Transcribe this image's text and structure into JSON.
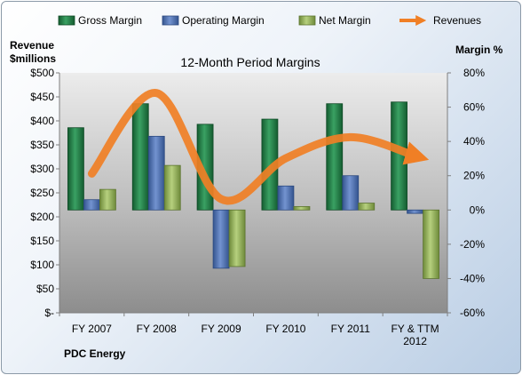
{
  "chart_data": {
    "type": "bar",
    "title": "12-Month Period Margins",
    "company": "PDC Energy",
    "left_axis_label": [
      "Revenue",
      "$millions"
    ],
    "right_axis_label": "Margin %",
    "categories": [
      [
        "FY 2007"
      ],
      [
        "FY 2008"
      ],
      [
        "FY 2009"
      ],
      [
        "FY 2010"
      ],
      [
        "FY 2011"
      ],
      [
        "FY & TTM",
        "2012"
      ]
    ],
    "left_ticks": [
      "$-",
      "$50",
      "$100",
      "$150",
      "$200",
      "$250",
      "$300",
      "$350",
      "$400",
      "$450",
      "$500"
    ],
    "right_ticks": [
      "-60%",
      "-40%",
      "-20%",
      "0%",
      "20%",
      "40%",
      "60%",
      "80%"
    ],
    "left_ylim": [
      0,
      500
    ],
    "right_ylim": [
      -60,
      80
    ],
    "grid": false,
    "legend_position": "top",
    "series": [
      {
        "name": "Gross Margin",
        "type": "bar",
        "axis": "right",
        "color": "#1e7e45",
        "values": [
          48,
          62,
          50,
          53,
          62,
          63
        ]
      },
      {
        "name": "Operating Margin",
        "type": "bar",
        "axis": "right",
        "color": "#4a6fb5",
        "values": [
          6,
          43,
          -34,
          14,
          20,
          -2
        ]
      },
      {
        "name": "Net Margin",
        "type": "bar",
        "axis": "right",
        "color": "#94b35a",
        "values": [
          12,
          26,
          -33,
          2,
          4,
          -40
        ]
      },
      {
        "name": "Revenues",
        "type": "line",
        "axis": "left",
        "color": "#f07f25",
        "values": [
          290,
          458,
          237,
          322,
          366,
          327
        ]
      }
    ]
  }
}
